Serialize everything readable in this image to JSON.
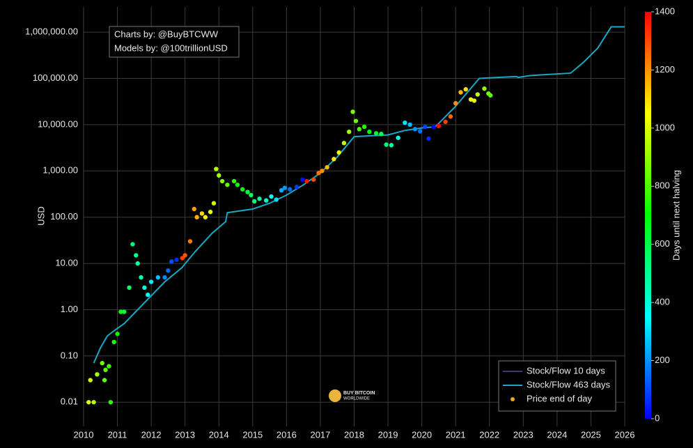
{
  "chart_data": {
    "type": "scatter",
    "y_label": "USD",
    "colorbar_label": "Days until next halving",
    "annotations": [
      "Charts by: @BuyBTCWW",
      "Models by: @100trillionUSD"
    ],
    "logo_text": [
      "BUY BITCOIN",
      "WORLDWIDE"
    ],
    "log_y": true,
    "grid": true,
    "legend": "lower right",
    "xlim": [
      2010,
      2026
    ],
    "xticks": [
      2010,
      2011,
      2012,
      2013,
      2014,
      2015,
      2016,
      2017,
      2018,
      2019,
      2020,
      2021,
      2022,
      2023,
      2024,
      2025,
      2026
    ],
    "ylim": [
      0.003,
      3500000
    ],
    "yticks": [
      0.01,
      {
        "value": 0.1,
        "label": "0.10"
      },
      {
        "value": 1,
        "label": "1.00"
      },
      {
        "value": 10,
        "label": "10.00"
      },
      {
        "value": 100,
        "label": "100.00"
      },
      {
        "value": 1000,
        "label": "1,000.00"
      },
      {
        "value": 10000,
        "label": "10,000.00"
      },
      {
        "value": 100000,
        "label": "100,000.00"
      },
      {
        "value": 1000000,
        "label": "1,000,000.00"
      }
    ],
    "clim": [
      0,
      1400
    ],
    "cticks": [
      0,
      200,
      400,
      600,
      800,
      1000,
      1200,
      1400
    ],
    "series": [
      {
        "name": "Stock/Flow 10 days",
        "kind": "line",
        "color": "#3a3a70",
        "x": [],
        "values": []
      },
      {
        "name": "Stock/Flow 463 days",
        "kind": "line",
        "color": "#17a9c4",
        "x": [
          2010.3,
          2010.5,
          2010.7,
          2010.9,
          2011.2,
          2011.6,
          2012.0,
          2012.4,
          2012.9,
          2013.3,
          2013.8,
          2014.2,
          2014.25,
          2015.0,
          2015.5,
          2016.0,
          2016.5,
          2017.0,
          2017.5,
          2018.0,
          2019.0,
          2019.5,
          2020.0,
          2020.4,
          2021.0,
          2021.7,
          2022.8,
          2022.85,
          2023.2,
          2024.4,
          2024.8,
          2025.2,
          2025.6,
          2026.0
        ],
        "values": [
          0.07,
          0.15,
          0.27,
          0.35,
          0.5,
          1.0,
          2.0,
          4.0,
          8,
          18,
          45,
          80,
          125,
          150,
          200,
          300,
          500,
          900,
          2000,
          5500,
          6000,
          7500,
          8500,
          9000,
          25000,
          100000,
          110000,
          105000,
          115000,
          130000,
          230000,
          450000,
          1300000,
          1300000
        ]
      },
      {
        "name": "Price end of day",
        "kind": "scatter",
        "color": "#f5a623",
        "x": [
          2010.15,
          2010.2,
          2010.3,
          2010.4,
          2010.55,
          2010.62,
          2010.65,
          2010.75,
          2010.8,
          2010.9,
          2011.0,
          2011.1,
          2011.2,
          2011.35,
          2011.45,
          2011.55,
          2011.6,
          2011.7,
          2011.8,
          2011.9,
          2012.0,
          2012.2,
          2012.4,
          2012.5,
          2012.6,
          2012.75,
          2012.92,
          2013.0,
          2013.15,
          2013.27,
          2013.35,
          2013.5,
          2013.6,
          2013.75,
          2013.85,
          2013.92,
          2014.0,
          2014.1,
          2014.25,
          2014.45,
          2014.55,
          2014.7,
          2014.85,
          2014.95,
          2015.05,
          2015.2,
          2015.4,
          2015.55,
          2015.7,
          2015.85,
          2015.95,
          2016.1,
          2016.3,
          2016.47,
          2016.6,
          2016.8,
          2016.95,
          2017.05,
          2017.2,
          2017.4,
          2017.55,
          2017.7,
          2017.85,
          2017.96,
          2018.05,
          2018.15,
          2018.3,
          2018.45,
          2018.65,
          2018.8,
          2018.95,
          2019.1,
          2019.3,
          2019.5,
          2019.65,
          2019.8,
          2019.95,
          2020.1,
          2020.2,
          2020.35,
          2020.5,
          2020.7,
          2020.85,
          2021.0,
          2021.15,
          2021.3,
          2021.45,
          2021.55,
          2021.65,
          2021.85,
          2021.97,
          2022.03
        ],
        "values": [
          0.01,
          0.03,
          0.01,
          0.04,
          0.07,
          0.03,
          0.05,
          0.06,
          0.01,
          0.2,
          0.3,
          0.9,
          0.9,
          3,
          26,
          15,
          10,
          5,
          3,
          2.1,
          4,
          5,
          5,
          7,
          11,
          12,
          13,
          15,
          30,
          150,
          100,
          120,
          100,
          130,
          200,
          1100,
          800,
          600,
          500,
          600,
          500,
          400,
          350,
          300,
          220,
          250,
          230,
          280,
          240,
          380,
          430,
          400,
          450,
          650,
          600,
          650,
          900,
          1000,
          1200,
          1800,
          2500,
          4000,
          7000,
          19000,
          12000,
          8000,
          9000,
          7000,
          6500,
          6300,
          3700,
          3600,
          5200,
          11000,
          10000,
          8000,
          7200,
          9000,
          5000,
          8800,
          9300,
          11500,
          15000,
          29000,
          50000,
          58000,
          35000,
          33000,
          45000,
          60000,
          47000,
          43000
        ],
        "color_values": [
          1008,
          989,
          953,
          916,
          861,
          836,
          825,
          788,
          770,
          734,
          697,
          661,
          624,
          569,
          533,
          496,
          478,
          442,
          405,
          369,
          332,
          259,
          186,
          150,
          113,
          58,
          1314,
          1285,
          1231,
          1186,
          1157,
          1103,
          1066,
          1011,
          975,
          949,
          920,
          884,
          829,
          756,
          719,
          665,
          610,
          573,
          537,
          482,
          409,
          354,
          300,
          245,
          208,
          153,
          80,
          18,
          1372,
          1299,
          1242,
          1205,
          1150,
          1077,
          1023,
          968,
          913,
          873,
          843,
          807,
          752,
          697,
          643,
          588,
          533,
          460,
          387,
          314,
          259,
          204,
          150,
          95,
          58,
          4,
          1387,
          1314,
          1260,
          1205,
          1150,
          1096,
          1041,
          1004,
          968,
          895,
          851,
          829
        ]
      }
    ]
  }
}
